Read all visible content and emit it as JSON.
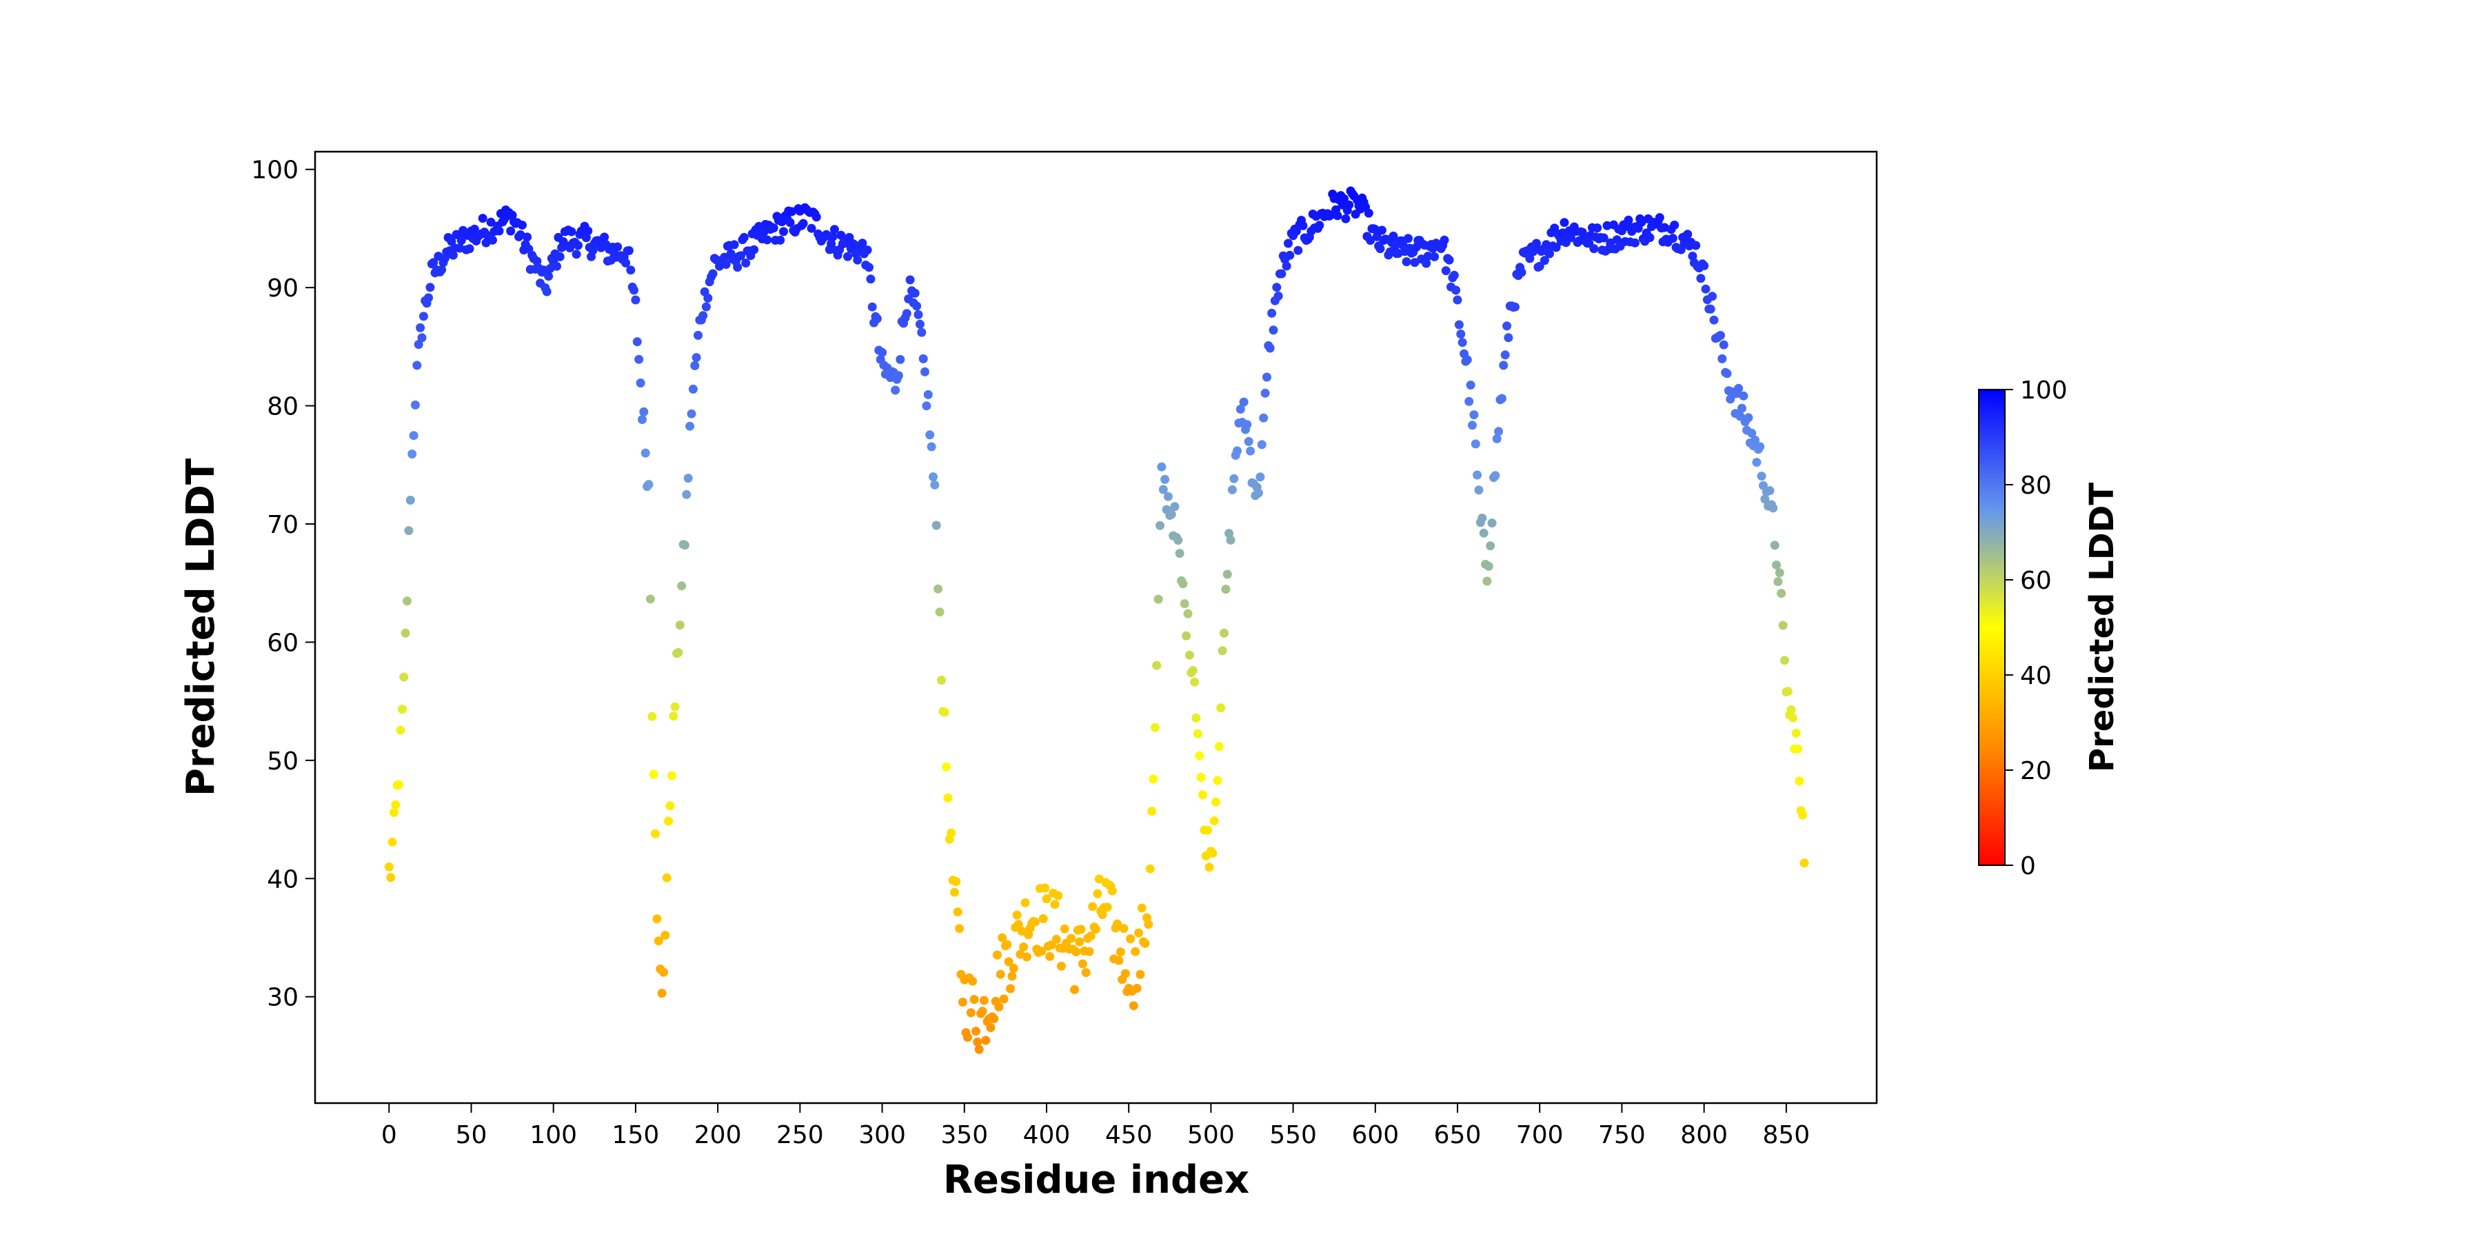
{
  "colors": {
    "colormap": [
      "#ff0000",
      "#ff8c00",
      "#ffff00",
      "#6495ed",
      "#0000ff"
    ],
    "colormap_stops": [
      0,
      25,
      50,
      75,
      100
    ],
    "axes_frame": "#000000",
    "background": "#ffffff"
  },
  "chart_data": {
    "type": "scatter",
    "title": "",
    "xlabel": "Residue index",
    "ylabel": "Predicted LDDT",
    "xlim": [
      -45,
      905
    ],
    "ylim": [
      21,
      101.5
    ],
    "xticks": [
      0,
      50,
      100,
      150,
      200,
      250,
      300,
      350,
      400,
      450,
      500,
      550,
      600,
      650,
      700,
      750,
      800,
      850
    ],
    "yticks": [
      30,
      40,
      50,
      60,
      70,
      80,
      90,
      100
    ],
    "grid": false,
    "color_by": "y",
    "colorbar": {
      "label": "Predicted LDDT",
      "range": [
        0,
        100
      ],
      "ticks": [
        0,
        20,
        40,
        60,
        80,
        100
      ]
    },
    "x_range": [
      0,
      861
    ],
    "y_profile": [
      [
        0,
        40
      ],
      [
        3,
        44
      ],
      [
        6,
        49
      ],
      [
        9,
        56
      ],
      [
        11,
        64
      ],
      [
        13,
        73
      ],
      [
        16,
        81
      ],
      [
        20,
        87
      ],
      [
        26,
        91
      ],
      [
        35,
        93
      ],
      [
        45,
        94
      ],
      [
        60,
        95
      ],
      [
        75,
        96
      ],
      [
        85,
        93
      ],
      [
        95,
        90
      ],
      [
        105,
        94
      ],
      [
        120,
        94
      ],
      [
        135,
        93
      ],
      [
        145,
        93
      ],
      [
        150,
        88
      ],
      [
        154,
        80
      ],
      [
        158,
        73
      ],
      [
        160,
        55
      ],
      [
        162,
        45
      ],
      [
        164,
        33
      ],
      [
        166,
        29
      ],
      [
        168,
        37
      ],
      [
        172,
        50
      ],
      [
        176,
        60
      ],
      [
        180,
        69
      ],
      [
        184,
        80
      ],
      [
        190,
        88
      ],
      [
        198,
        92
      ],
      [
        215,
        93
      ],
      [
        235,
        95
      ],
      [
        255,
        96
      ],
      [
        270,
        94
      ],
      [
        290,
        93
      ],
      [
        300,
        83
      ],
      [
        308,
        82
      ],
      [
        316,
        90
      ],
      [
        322,
        87
      ],
      [
        328,
        80
      ],
      [
        333,
        70
      ],
      [
        336,
        58
      ],
      [
        340,
        47
      ],
      [
        344,
        38
      ],
      [
        350,
        30
      ],
      [
        360,
        28
      ],
      [
        375,
        33
      ],
      [
        390,
        37
      ],
      [
        405,
        36
      ],
      [
        420,
        33
      ],
      [
        435,
        38
      ],
      [
        445,
        34
      ],
      [
        455,
        32
      ],
      [
        462,
        38
      ],
      [
        466,
        52
      ],
      [
        470,
        74
      ],
      [
        478,
        70
      ],
      [
        484,
        63
      ],
      [
        490,
        57
      ],
      [
        496,
        44
      ],
      [
        500,
        42
      ],
      [
        503,
        47
      ],
      [
        506,
        55
      ],
      [
        510,
        66
      ],
      [
        515,
        76
      ],
      [
        520,
        80
      ],
      [
        528,
        72
      ],
      [
        532,
        78
      ],
      [
        536,
        86
      ],
      [
        542,
        91
      ],
      [
        550,
        94
      ],
      [
        560,
        95
      ],
      [
        575,
        97
      ],
      [
        590,
        97
      ],
      [
        600,
        94
      ],
      [
        615,
        93
      ],
      [
        630,
        93
      ],
      [
        640,
        94
      ],
      [
        648,
        90
      ],
      [
        655,
        84
      ],
      [
        660,
        78
      ],
      [
        664,
        70
      ],
      [
        668,
        66
      ],
      [
        672,
        73
      ],
      [
        676,
        80
      ],
      [
        682,
        88
      ],
      [
        690,
        92
      ],
      [
        700,
        93
      ],
      [
        715,
        95
      ],
      [
        735,
        94
      ],
      [
        760,
        95
      ],
      [
        780,
        95
      ],
      [
        795,
        93
      ],
      [
        802,
        90
      ],
      [
        808,
        86
      ],
      [
        815,
        82
      ],
      [
        825,
        79
      ],
      [
        835,
        75
      ],
      [
        842,
        70
      ],
      [
        846,
        65
      ],
      [
        849,
        58
      ],
      [
        852,
        54
      ],
      [
        856,
        52
      ],
      [
        858,
        48
      ],
      [
        861,
        42
      ]
    ]
  }
}
